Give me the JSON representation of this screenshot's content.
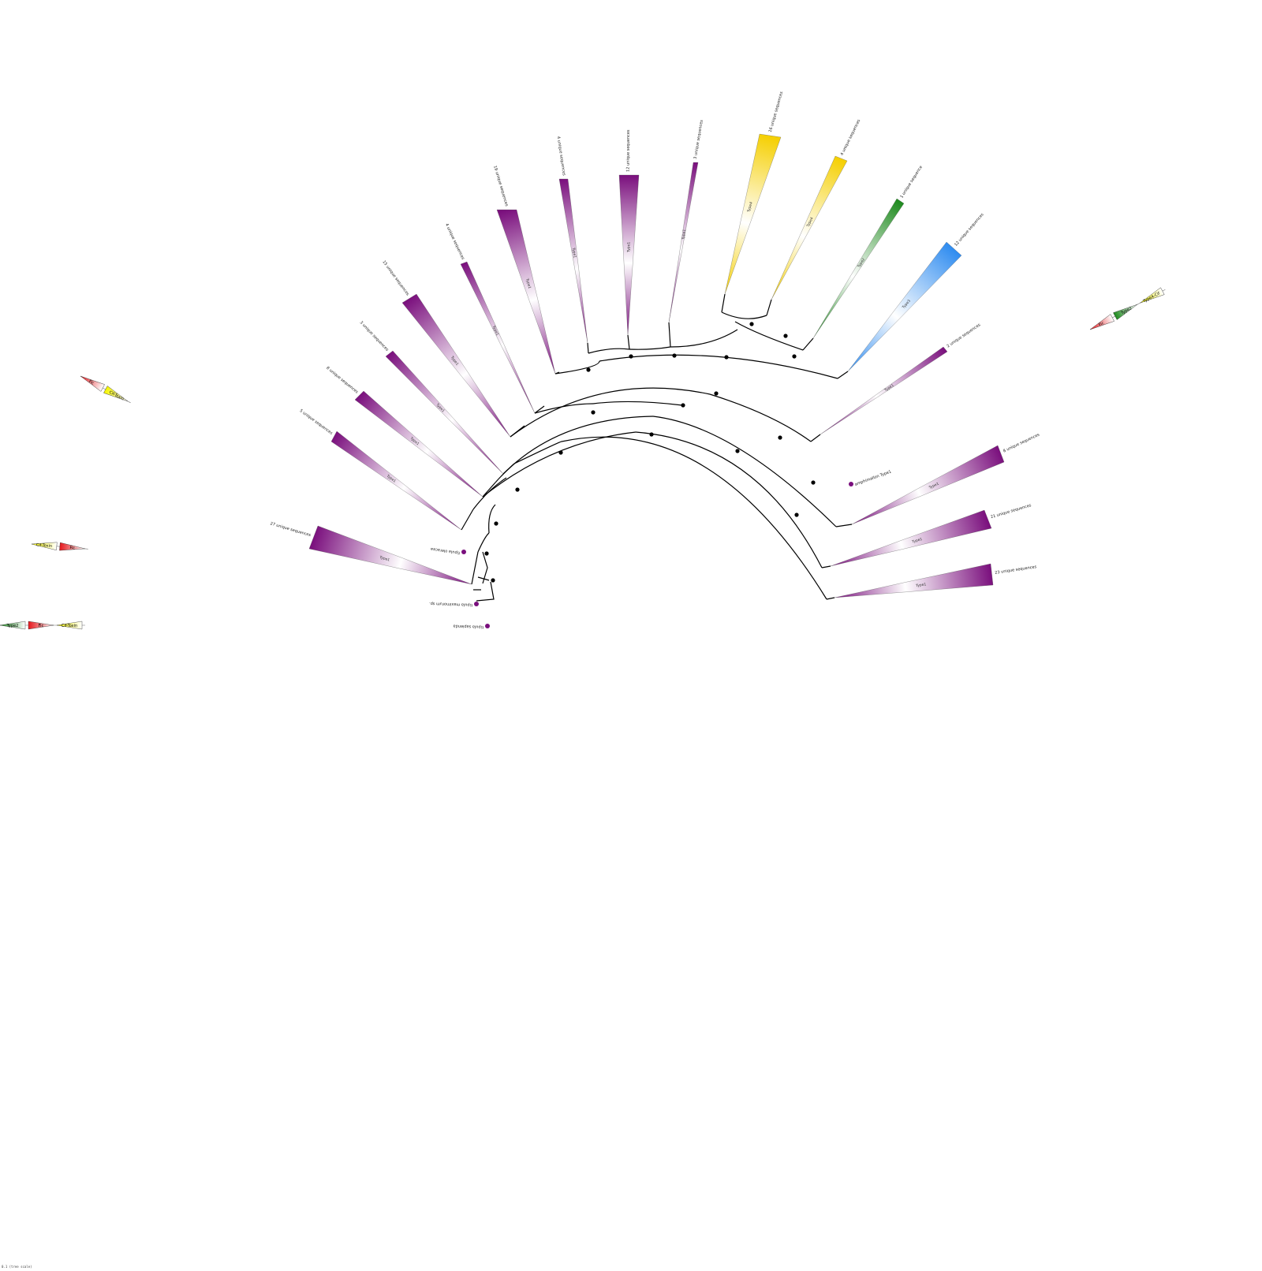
{
  "colors": {
    "purple": "#7a0f7d",
    "yellow": "#f5cf00",
    "green": "#1e8a1e",
    "blue": "#2f8cf0",
    "red": "#e4171c",
    "lightyellow": "#f5f500"
  },
  "collapsed_clades": [
    {
      "id": "c1",
      "label": "27 unique sequences",
      "inner": "Type1",
      "color": "purple"
    },
    {
      "id": "c2",
      "label": "5 unique sequences",
      "inner": "Type1",
      "color": "purple"
    },
    {
      "id": "c3",
      "label": "8 unique sequences",
      "inner": "Type1",
      "color": "purple"
    },
    {
      "id": "c4",
      "label": "3 unique sequences",
      "inner": "Type1",
      "color": "purple"
    },
    {
      "id": "c5",
      "label": "15 unique sequences",
      "inner": "Type1",
      "color": "purple"
    },
    {
      "id": "c6",
      "label": "4 unique sequences",
      "inner": "Type1",
      "color": "purple"
    },
    {
      "id": "c7",
      "label": "19 unique sequences",
      "inner": "Type1",
      "color": "purple"
    },
    {
      "id": "c8",
      "label": "4 unique sequences",
      "inner": "Type1",
      "color": "purple"
    },
    {
      "id": "c9",
      "label": "12 unique sequences",
      "inner": "Type1",
      "color": "purple"
    },
    {
      "id": "c10",
      "label": "3 unique sequences",
      "inner": "Type1",
      "color": "purple"
    },
    {
      "id": "c11",
      "label": "16 unique sequences",
      "inner": "Type4",
      "color": "yellow"
    },
    {
      "id": "c12",
      "label": "4 unique sequences",
      "inner": "Type4",
      "color": "yellow"
    },
    {
      "id": "c13",
      "label": "1 unique sequence",
      "inner": "Type2",
      "color": "green"
    },
    {
      "id": "c14",
      "label": "12 unique sequences",
      "inner": "Type3",
      "color": "blue"
    },
    {
      "id": "c15",
      "label": "2 unique sequences",
      "inner": "Type1",
      "color": "purple"
    },
    {
      "id": "c16",
      "label": "8 unique sequences",
      "inner": "Type1",
      "color": "purple"
    },
    {
      "id": "c17",
      "label": "21 unique sequences",
      "inner": "Type1",
      "color": "purple"
    },
    {
      "id": "c18",
      "label": "23 unique sequences",
      "inner": "Type1",
      "color": "purple"
    }
  ],
  "leaves": [
    {
      "id": "l1",
      "label": "tipula sapienda"
    },
    {
      "id": "l2",
      "label": "tipula maximorum sp."
    },
    {
      "id": "l3",
      "label": "tipula oleracea"
    },
    {
      "id": "l4",
      "label": "amphimallon Type1"
    }
  ],
  "gene_maps": [
    {
      "id": "g1",
      "tags": [
        "Fic",
        "Cif-Toxin"
      ]
    },
    {
      "id": "g2",
      "tags": [
        "Cif-Toxin",
        "Fic"
      ]
    },
    {
      "id": "g3",
      "tags": [
        "Type2",
        "Fic",
        "Cif-Toxin"
      ]
    },
    {
      "id": "g4",
      "tags": [
        "Fic",
        "Type2",
        "Type4-Cif"
      ]
    }
  ],
  "scale_text": "0.1 (tree scale)"
}
